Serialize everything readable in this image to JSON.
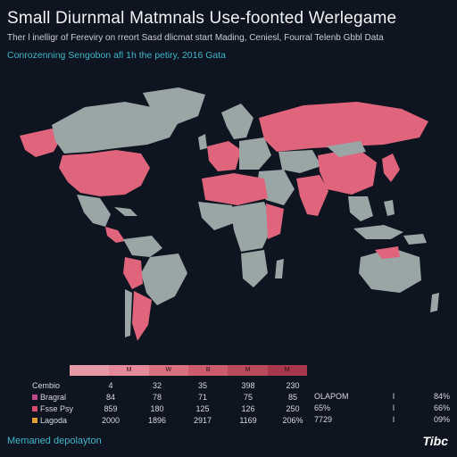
{
  "header": {
    "title": "Small Diurnmal Matmnals Use-foonted Werlegame",
    "subtitle": "Ther l inelligr of Fereviry on rreort Sasd dlicmat start Mading, Ceniesl, Fourral Telenb Gbbl Data",
    "source": "Conrozenning Sengobon afl 1h the petiry, 2016 Gata"
  },
  "colors": {
    "background": "#0e1420",
    "land_neutral": "#9aa6a6",
    "land_highlight": "#e0647c",
    "accent_text": "#3fb6c8"
  },
  "legend": {
    "ticks": [
      "",
      "M",
      "W",
      "B",
      "M",
      "M"
    ]
  },
  "stats_table": {
    "rows": [
      {
        "label": "Cembio",
        "swatch": "",
        "values": [
          "4",
          "32",
          "35",
          "398",
          "230"
        ]
      },
      {
        "label": "Bragral",
        "swatch": "#c04a8c",
        "values": [
          "84",
          "78",
          "71",
          "75",
          "85"
        ]
      },
      {
        "label": "Fsse Psy",
        "swatch": "#d94a6a",
        "values": [
          "859",
          "180",
          "125",
          "126",
          "250"
        ]
      },
      {
        "label": "Lagoda",
        "swatch": "#e0a030",
        "values": [
          "2000",
          "1896",
          "2917",
          "1169",
          "206%"
        ]
      }
    ]
  },
  "side_table": {
    "rows": [
      {
        "a": "OLAPOM",
        "b": "I",
        "c": "84%"
      },
      {
        "a": "65%",
        "b": "I",
        "c": "66%"
      },
      {
        "a": "7729",
        "b": "I",
        "c": "09%"
      }
    ]
  },
  "footer": {
    "left": "Memaned depolayton",
    "right": "Tibc"
  }
}
